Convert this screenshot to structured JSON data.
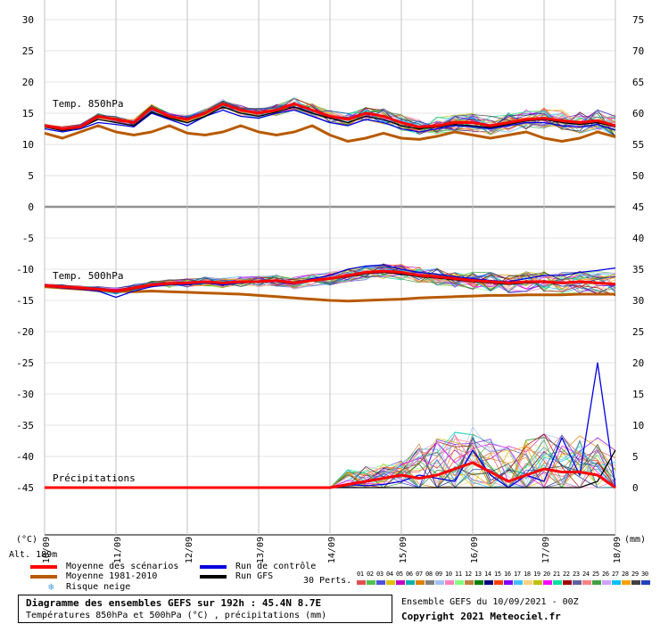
{
  "chart_data": {
    "type": "line",
    "title": "Diagramme des ensembles GEFS sur 192h : 45.4N 8.7E",
    "subtitle": "Températures 850hPa et 500hPa (°C) , précipitations (mm)",
    "left_axis_unit": "(°C)",
    "right_axis_unit": "(mm)",
    "left_ticks": [
      "30",
      "25",
      "20",
      "15",
      "10",
      "5",
      "0",
      "-5",
      "-10",
      "-15",
      "-20",
      "-25",
      "-30",
      "-35",
      "-40",
      "-45"
    ],
    "right_ticks": [
      "75",
      "70",
      "65",
      "60",
      "55",
      "50",
      "45",
      "40",
      "35",
      "30",
      "25",
      "20",
      "15",
      "10",
      "5",
      "0"
    ],
    "x_labels": [
      "10/09",
      "11/09",
      "12/09",
      "13/09",
      "14/09",
      "15/09",
      "16/09",
      "17/09",
      "18/09"
    ],
    "altitude": "Alt. 189m",
    "panel_labels": {
      "t850": "Temp. 850hPa",
      "t500": "Temp. 500hPa",
      "precip": "Précipitations"
    },
    "ylim_temp": [
      -45,
      30
    ],
    "ylim_precip_mm": [
      0,
      75
    ],
    "x_step_hours": 6,
    "series": [
      {
        "name": "Moyenne des scénarios",
        "color": "#ff0000",
        "t850": [
          13,
          12.5,
          12.8,
          14.5,
          14,
          13.5,
          15.8,
          14.5,
          14,
          15,
          16.5,
          15.5,
          15,
          15.5,
          16.5,
          15.5,
          14.5,
          14,
          15,
          14.5,
          13.5,
          12.8,
          13,
          13.5,
          13.5,
          13,
          13.5,
          14,
          14.2,
          13.8,
          13.5,
          13.8,
          13
        ],
        "t500": [
          -12.6,
          -12.8,
          -13,
          -13.2,
          -13.5,
          -13,
          -12.5,
          -12.3,
          -12.2,
          -12,
          -12.2,
          -12,
          -12,
          -11.8,
          -12.2,
          -11.8,
          -11.5,
          -11,
          -10.5,
          -10.3,
          -10.5,
          -11,
          -11.2,
          -11.5,
          -11.8,
          -12,
          -12.2,
          -12,
          -12,
          -12.2,
          -12,
          -12.2,
          -12.4
        ],
        "precip": [
          0,
          0,
          0,
          0,
          0,
          0,
          0,
          0,
          0,
          0,
          0,
          0,
          0,
          0,
          0,
          0,
          0,
          0.5,
          1,
          1.5,
          2,
          1.5,
          2,
          3,
          4,
          2.5,
          1,
          2,
          3,
          2.5,
          2.5,
          2,
          0
        ]
      },
      {
        "name": "Moyenne 1981-2010",
        "color": "#b85a00",
        "t850": [
          11.8,
          11,
          12,
          13,
          12,
          11.5,
          12,
          13,
          11.8,
          11.5,
          12,
          13,
          12,
          11.5,
          12,
          13,
          11.5,
          10.5,
          11,
          11.8,
          11,
          10.8,
          11.3,
          12,
          11.5,
          11,
          11.5,
          12,
          11,
          10.5,
          11,
          12,
          11.2
        ],
        "t500": [
          -12.8,
          -13,
          -13.2,
          -13.4,
          -13.5,
          -13.6,
          -13.5,
          -13.6,
          -13.7,
          -13.8,
          -13.9,
          -14,
          -14.2,
          -14.4,
          -14.6,
          -14.8,
          -15,
          -15.1,
          -15,
          -14.9,
          -14.8,
          -14.6,
          -14.5,
          -14.4,
          -14.3,
          -14.2,
          -14.2,
          -14.1,
          -14.1,
          -14.1,
          -14,
          -14,
          -14
        ]
      },
      {
        "name": "Run de contrôle",
        "color": "#0000e0",
        "t850": [
          12.5,
          12,
          12.5,
          13.5,
          13.2,
          12.8,
          15,
          14,
          13,
          14.5,
          15.5,
          14.5,
          14.2,
          15,
          15.5,
          14.5,
          13.5,
          13,
          14,
          13.5,
          12.5,
          12,
          12.5,
          13,
          12.8,
          12.5,
          13,
          13.5,
          13.5,
          13,
          12.8,
          13.2,
          12.3
        ],
        "t500": [
          -12.7,
          -13,
          -13.2,
          -13.5,
          -14.5,
          -13.5,
          -12.8,
          -12.5,
          -12.5,
          -12.2,
          -12.5,
          -12.2,
          -12,
          -12,
          -12.4,
          -11.5,
          -11,
          -10,
          -9.5,
          -9.3,
          -10,
          -10.5,
          -10.8,
          -11.2,
          -11.5,
          -11.8,
          -12,
          -11.5,
          -11,
          -11,
          -10.5,
          -10.2,
          -9.8
        ],
        "precip": [
          0,
          0,
          0,
          0,
          0,
          0,
          0,
          0,
          0,
          0,
          0,
          0,
          0,
          0,
          0,
          0,
          0,
          0.5,
          0.3,
          0.5,
          1,
          2,
          1.5,
          1,
          6,
          2,
          0,
          2,
          1,
          8,
          2,
          20,
          0
        ]
      },
      {
        "name": "Run GFS",
        "color": "#000000",
        "t850": [
          12.8,
          12.2,
          12.7,
          14,
          13.5,
          13,
          15.2,
          14.2,
          13.5,
          14.5,
          16,
          15,
          14.5,
          15.2,
          16,
          15,
          14.2,
          13.5,
          14.5,
          14,
          13,
          12.5,
          12.8,
          13.2,
          13,
          12.7,
          13.2,
          13.8,
          14,
          13.5,
          13.2,
          13.5,
          12.8
        ],
        "t500": [
          -12.6,
          -12.9,
          -13.1,
          -13.3,
          -13.6,
          -13.2,
          -12.6,
          -12.4,
          -12.3,
          -12.1,
          -12.3,
          -12.1,
          -12.1,
          -11.9,
          -12.3,
          -11.9,
          -11.6,
          -11.2,
          -10.7,
          -10.5,
          -10.8,
          -11.2,
          -11.4,
          -11.7,
          -12,
          -12.2,
          -12.4,
          -12.2,
          -12.1,
          -12.3,
          -12.1,
          -12.3,
          -12.5
        ],
        "precip": [
          0,
          0,
          0,
          0,
          0,
          0,
          0,
          0,
          0,
          0,
          0,
          0,
          0,
          0,
          0,
          0,
          0,
          0,
          0,
          0,
          0,
          0,
          0,
          0,
          0,
          0,
          0,
          0,
          0,
          0,
          0,
          1,
          6
        ]
      }
    ]
  },
  "legend": {
    "mean_label": "Moyenne des scénarios",
    "climo_label": "Moyenne 1981-2010",
    "snow_label": "Risque neige",
    "control_label": "Run de contrôle",
    "gfs_label": "Run GFS",
    "perts_label": "30 Perts.",
    "pert_numbers": [
      "01",
      "02",
      "03",
      "04",
      "05",
      "06",
      "07",
      "08",
      "09",
      "10",
      "11",
      "12",
      "13",
      "14",
      "15",
      "16",
      "17",
      "18",
      "19",
      "20",
      "21",
      "22",
      "23",
      "24",
      "25",
      "26",
      "27",
      "28",
      "29",
      "30"
    ],
    "pert_colors": [
      "#e05050",
      "#50c050",
      "#5050e0",
      "#e0c000",
      "#c000c0",
      "#00b0b0",
      "#e08000",
      "#808080",
      "#a0c0ff",
      "#ff80c0",
      "#80ff80",
      "#c08040",
      "#008000",
      "#000080",
      "#ff4000",
      "#8000ff",
      "#40c0ff",
      "#ffd080",
      "#c0c000",
      "#ff00ff",
      "#00e0a0",
      "#a00000",
      "#6060a0",
      "#ff8080",
      "#40a040",
      "#d0a0ff",
      "#00c0ff",
      "#ffa000",
      "#404040",
      "#2040c0"
    ]
  },
  "footer": {
    "ensemble_info": "Ensemble GEFS du 10/09/2021 - 00Z",
    "copyright": "Copyright 2021 Meteociel.fr"
  }
}
